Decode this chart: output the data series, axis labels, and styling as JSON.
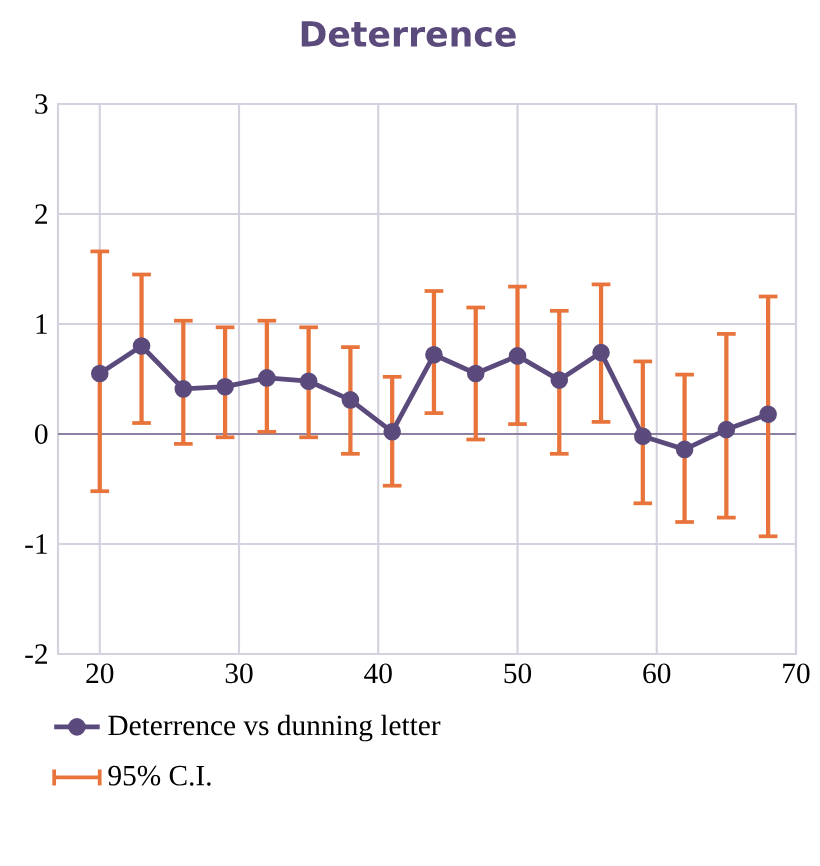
{
  "chart_data": {
    "type": "line",
    "title": "Deterrence",
    "x": [
      20,
      23,
      26,
      29,
      32,
      35,
      38,
      41,
      44,
      47,
      50,
      53,
      56,
      59,
      62,
      65,
      68
    ],
    "series": [
      {
        "name": "Deterrence vs dunning letter",
        "color": "#5b4a7c",
        "values": [
          0.55,
          0.8,
          0.41,
          0.43,
          0.51,
          0.48,
          0.31,
          0.02,
          0.72,
          0.55,
          0.71,
          0.49,
          0.74,
          -0.02,
          -0.14,
          0.04,
          0.18
        ],
        "errors": [
          [
            -0.52,
            1.66
          ],
          [
            0.1,
            1.45
          ],
          [
            -0.09,
            1.03
          ],
          [
            -0.03,
            0.97
          ],
          [
            0.02,
            1.03
          ],
          [
            -0.03,
            0.97
          ],
          [
            -0.18,
            0.79
          ],
          [
            -0.47,
            0.52
          ],
          [
            0.19,
            1.3
          ],
          [
            -0.05,
            1.15
          ],
          [
            0.09,
            1.34
          ],
          [
            -0.18,
            1.12
          ],
          [
            0.11,
            1.36
          ],
          [
            -0.63,
            0.66
          ],
          [
            -0.8,
            0.54
          ],
          [
            -0.76,
            0.91
          ],
          [
            -0.93,
            1.25
          ]
        ]
      }
    ],
    "annotations": [
      "95% C.I."
    ],
    "xlim": [
      17,
      70
    ],
    "xticks": [
      20,
      30,
      40,
      50,
      60,
      70
    ],
    "ylim": [
      -2,
      3
    ],
    "yticks": [
      -2,
      -1,
      0,
      1,
      2,
      3
    ],
    "grid": true,
    "legend": "bottom",
    "marker": "circle",
    "line_style": "solid"
  }
}
